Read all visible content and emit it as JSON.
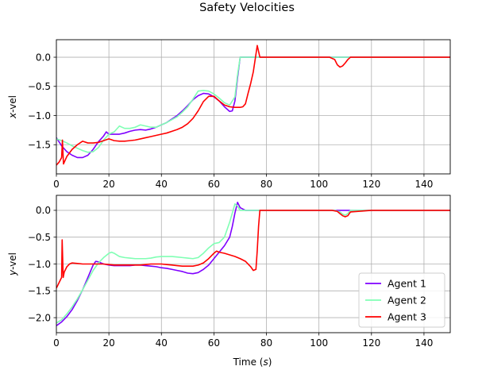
{
  "chart_data": {
    "type": "line",
    "title": "Safety Velocities",
    "xlabel": "Time (s)",
    "xlabel_main": "Time (",
    "xlabel_var": "s",
    "xlabel_end": ")",
    "xlim": [
      0,
      150
    ],
    "xticks": [
      0,
      20,
      40,
      60,
      80,
      100,
      120,
      140
    ],
    "grid": true,
    "legend": {
      "location": "lower right in bottom panel",
      "entries": [
        "Agent 1",
        "Agent 2",
        "Agent 3"
      ]
    },
    "colors": {
      "Agent 1": "#7f00ff",
      "Agent 2": "#80ffb4",
      "Agent 3": "#ff0000"
    },
    "panels": [
      {
        "ylabel": "x-vel",
        "ylabel_var": "x",
        "ylabel_rest": "-vel",
        "ylim": [
          -2.0,
          0.3
        ],
        "yticks": [
          0.0,
          -0.5,
          -1.0,
          -1.5
        ],
        "ytick_labels": [
          "0.0",
          "−0.5",
          "−1.0",
          "−1.5"
        ],
        "series": [
          {
            "name": "Agent 1",
            "x": [
              0,
              2,
              4,
              6,
              8,
              10,
              12,
              14,
              16,
              18,
              19,
              20,
              22,
              24,
              26,
              28,
              30,
              32,
              34,
              36,
              38,
              40,
              42,
              44,
              46,
              48,
              50,
              52,
              54,
              56,
              58,
              60,
              62,
              64,
              66,
              67,
              68,
              69,
              70,
              72,
              74,
              76,
              78,
              80,
              90,
              100,
              110,
              120,
              130,
              140,
              150
            ],
            "y": [
              -1.38,
              -1.52,
              -1.62,
              -1.68,
              -1.72,
              -1.72,
              -1.68,
              -1.58,
              -1.45,
              -1.35,
              -1.28,
              -1.32,
              -1.32,
              -1.32,
              -1.3,
              -1.27,
              -1.25,
              -1.24,
              -1.25,
              -1.23,
              -1.2,
              -1.16,
              -1.12,
              -1.06,
              -1.0,
              -0.92,
              -0.83,
              -0.73,
              -0.66,
              -0.62,
              -0.63,
              -0.68,
              -0.75,
              -0.85,
              -0.93,
              -0.92,
              -0.75,
              -0.35,
              0.0,
              0.0,
              0.0,
              0.0,
              0.0,
              0.0,
              0.0,
              0.0,
              0.0,
              0.0,
              0.0,
              0.0,
              0.0
            ]
          },
          {
            "name": "Agent 2",
            "x": [
              0,
              2,
              4,
              6,
              8,
              10,
              12,
              14,
              16,
              18,
              20,
              22,
              24,
              26,
              28,
              30,
              32,
              34,
              36,
              38,
              40,
              42,
              44,
              46,
              48,
              50,
              52,
              54,
              56,
              58,
              60,
              62,
              64,
              66,
              68,
              69,
              70,
              72,
              74,
              76,
              78,
              80,
              90,
              100,
              110,
              120,
              130,
              140,
              150
            ],
            "y": [
              -1.4,
              -1.43,
              -1.47,
              -1.52,
              -1.56,
              -1.6,
              -1.63,
              -1.62,
              -1.55,
              -1.42,
              -1.32,
              -1.28,
              -1.18,
              -1.22,
              -1.22,
              -1.2,
              -1.16,
              -1.18,
              -1.2,
              -1.2,
              -1.16,
              -1.12,
              -1.07,
              -1.02,
              -0.94,
              -0.85,
              -0.72,
              -0.58,
              -0.57,
              -0.58,
              -0.63,
              -0.7,
              -0.78,
              -0.82,
              -0.68,
              -0.3,
              0.0,
              0.0,
              0.0,
              0.0,
              0.0,
              0.0,
              0.0,
              0.0,
              0.0,
              0.0,
              0.0,
              0.0,
              0.0
            ]
          },
          {
            "name": "Agent 3",
            "x": [
              0,
              1,
              2,
              2.3,
              2.7,
              4,
              6,
              8,
              10,
              12,
              14,
              16,
              18,
              20,
              22,
              24,
              26,
              28,
              30,
              32,
              34,
              36,
              38,
              40,
              42,
              44,
              46,
              48,
              50,
              52,
              54,
              56,
              58,
              60,
              62,
              64,
              66,
              68,
              70,
              71,
              72,
              73,
              74,
              75,
              76,
              76.5,
              77,
              77.5,
              78,
              80,
              90,
              100,
              104,
              106,
              107,
              108,
              109,
              110,
              111,
              112,
              120,
              130,
              140,
              150
            ],
            "y": [
              -1.85,
              -1.8,
              -1.72,
              -1.42,
              -1.83,
              -1.7,
              -1.58,
              -1.5,
              -1.44,
              -1.47,
              -1.47,
              -1.46,
              -1.43,
              -1.4,
              -1.43,
              -1.44,
              -1.44,
              -1.43,
              -1.42,
              -1.4,
              -1.38,
              -1.36,
              -1.34,
              -1.32,
              -1.3,
              -1.27,
              -1.24,
              -1.2,
              -1.14,
              -1.05,
              -0.92,
              -0.76,
              -0.67,
              -0.67,
              -0.75,
              -0.82,
              -0.85,
              -0.86,
              -0.86,
              -0.85,
              -0.8,
              -0.62,
              -0.45,
              -0.25,
              0.05,
              0.2,
              0.1,
              0.0,
              0.0,
              0.0,
              0.0,
              0.0,
              0.0,
              -0.04,
              -0.13,
              -0.17,
              -0.15,
              -0.1,
              -0.04,
              0.0,
              0.0,
              0.0,
              0.0,
              0.0
            ]
          }
        ]
      },
      {
        "ylabel": "y-vel",
        "ylabel_var": "y",
        "ylabel_rest": "-vel",
        "ylim": [
          -2.28,
          0.28
        ],
        "yticks": [
          0.0,
          -0.5,
          -1.0,
          -1.5,
          -2.0
        ],
        "ytick_labels": [
          "0.0",
          "−0.5",
          "−1.0",
          "−1.5",
          "−2.0"
        ],
        "series": [
          {
            "name": "Agent 1",
            "x": [
              0,
              2,
              4,
              6,
              8,
              10,
              12,
              14,
              15,
              16,
              18,
              20,
              22,
              24,
              26,
              28,
              30,
              32,
              34,
              36,
              38,
              40,
              42,
              44,
              46,
              48,
              50,
              52,
              54,
              56,
              58,
              60,
              62,
              64,
              66,
              67,
              68,
              69,
              70,
              72,
              74,
              76,
              78,
              80,
              90,
              100,
              110,
              120,
              130,
              140,
              150
            ],
            "y": [
              -2.15,
              -2.08,
              -1.98,
              -1.85,
              -1.68,
              -1.48,
              -1.25,
              -1.02,
              -0.95,
              -0.96,
              -1.0,
              -1.02,
              -1.03,
              -1.03,
              -1.03,
              -1.03,
              -1.02,
              -1.02,
              -1.03,
              -1.04,
              -1.05,
              -1.07,
              -1.08,
              -1.1,
              -1.12,
              -1.14,
              -1.17,
              -1.18,
              -1.16,
              -1.1,
              -1.02,
              -0.9,
              -0.78,
              -0.66,
              -0.5,
              -0.3,
              -0.05,
              0.15,
              0.05,
              0.0,
              0.0,
              0.0,
              0.0,
              0.0,
              0.0,
              0.0,
              0.0,
              0.0,
              0.0,
              0.0,
              0.0
            ]
          },
          {
            "name": "Agent 2",
            "x": [
              0,
              2,
              4,
              6,
              8,
              10,
              12,
              14,
              16,
              18,
              20,
              21,
              22,
              24,
              26,
              28,
              30,
              32,
              34,
              36,
              38,
              40,
              42,
              44,
              46,
              48,
              50,
              52,
              54,
              56,
              58,
              60,
              62,
              64,
              66,
              68,
              69,
              70,
              72,
              74,
              76,
              78,
              80,
              90,
              100,
              106,
              108,
              109,
              110,
              111,
              112,
              120,
              130,
              140,
              150
            ],
            "y": [
              -2.1,
              -2.04,
              -1.93,
              -1.8,
              -1.65,
              -1.48,
              -1.3,
              -1.12,
              -0.98,
              -0.88,
              -0.8,
              -0.78,
              -0.8,
              -0.86,
              -0.88,
              -0.89,
              -0.9,
              -0.9,
              -0.9,
              -0.89,
              -0.87,
              -0.86,
              -0.86,
              -0.86,
              -0.87,
              -0.88,
              -0.89,
              -0.9,
              -0.88,
              -0.8,
              -0.7,
              -0.62,
              -0.6,
              -0.5,
              -0.22,
              0.12,
              0.08,
              0.0,
              0.0,
              0.0,
              0.0,
              0.0,
              0.0,
              0.0,
              0.0,
              0.0,
              -0.03,
              -0.07,
              -0.09,
              -0.06,
              0.0,
              0.0,
              0.0,
              0.0,
              0.0
            ]
          },
          {
            "name": "Agent 3",
            "x": [
              0,
              1,
              2,
              2.2,
              2.6,
              3,
              4,
              5,
              6,
              8,
              10,
              12,
              14,
              16,
              18,
              20,
              22,
              24,
              26,
              28,
              30,
              32,
              34,
              36,
              38,
              40,
              42,
              44,
              46,
              48,
              50,
              52,
              54,
              56,
              58,
              60,
              61,
              62,
              64,
              66,
              68,
              70,
              72,
              74,
              75,
              76,
              76.5,
              77,
              77.5,
              78,
              80,
              90,
              100,
              105,
              107,
              108,
              109,
              110,
              111,
              112,
              120,
              130,
              140,
              150
            ],
            "y": [
              -1.45,
              -1.35,
              -1.25,
              -0.55,
              -1.25,
              -1.15,
              -1.05,
              -1.0,
              -0.98,
              -0.99,
              -1.0,
              -1.0,
              -1.0,
              -1.0,
              -1.0,
              -1.01,
              -1.02,
              -1.02,
              -1.02,
              -1.02,
              -1.02,
              -1.02,
              -1.01,
              -1.0,
              -1.0,
              -1.0,
              -1.01,
              -1.02,
              -1.03,
              -1.04,
              -1.04,
              -1.04,
              -1.02,
              -0.98,
              -0.9,
              -0.8,
              -0.76,
              -0.78,
              -0.8,
              -0.83,
              -0.86,
              -0.9,
              -0.95,
              -1.05,
              -1.12,
              -1.1,
              -0.75,
              -0.3,
              0.0,
              0.0,
              0.0,
              0.0,
              0.0,
              0.0,
              -0.02,
              -0.06,
              -0.1,
              -0.12,
              -0.1,
              -0.03,
              0.0,
              0.0,
              0.0,
              0.0
            ]
          }
        ]
      }
    ]
  }
}
